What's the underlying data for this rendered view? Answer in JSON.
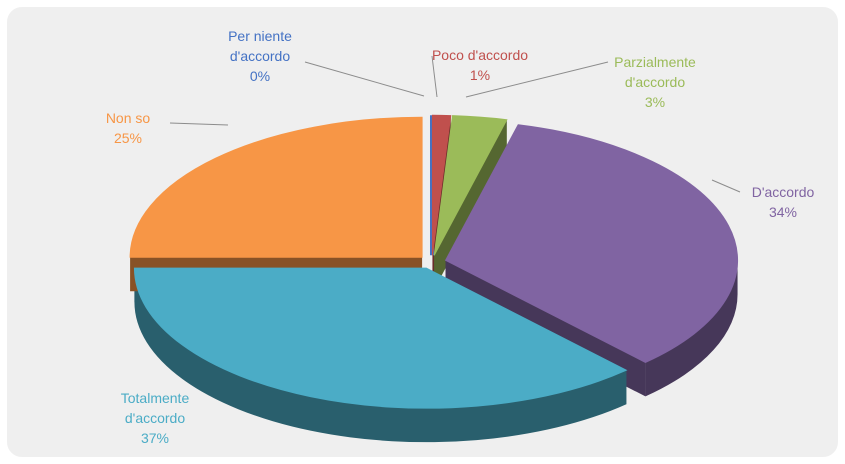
{
  "chart_data": {
    "type": "pie",
    "categories": [
      "Per niente d'accordo",
      "Poco d'accordo",
      "Parzialmente d'accordo",
      "D'accordo",
      "Totalmente d'accordo",
      "Non so"
    ],
    "values": [
      0,
      1,
      3,
      34,
      37,
      25
    ],
    "value_labels": [
      "0%",
      "1%",
      "3%",
      "34%",
      "37%",
      "25%"
    ],
    "colors": [
      "#4472c4",
      "#c0504d",
      "#9bbb59",
      "#8064a2",
      "#4bacc6",
      "#f79646"
    ]
  }
}
